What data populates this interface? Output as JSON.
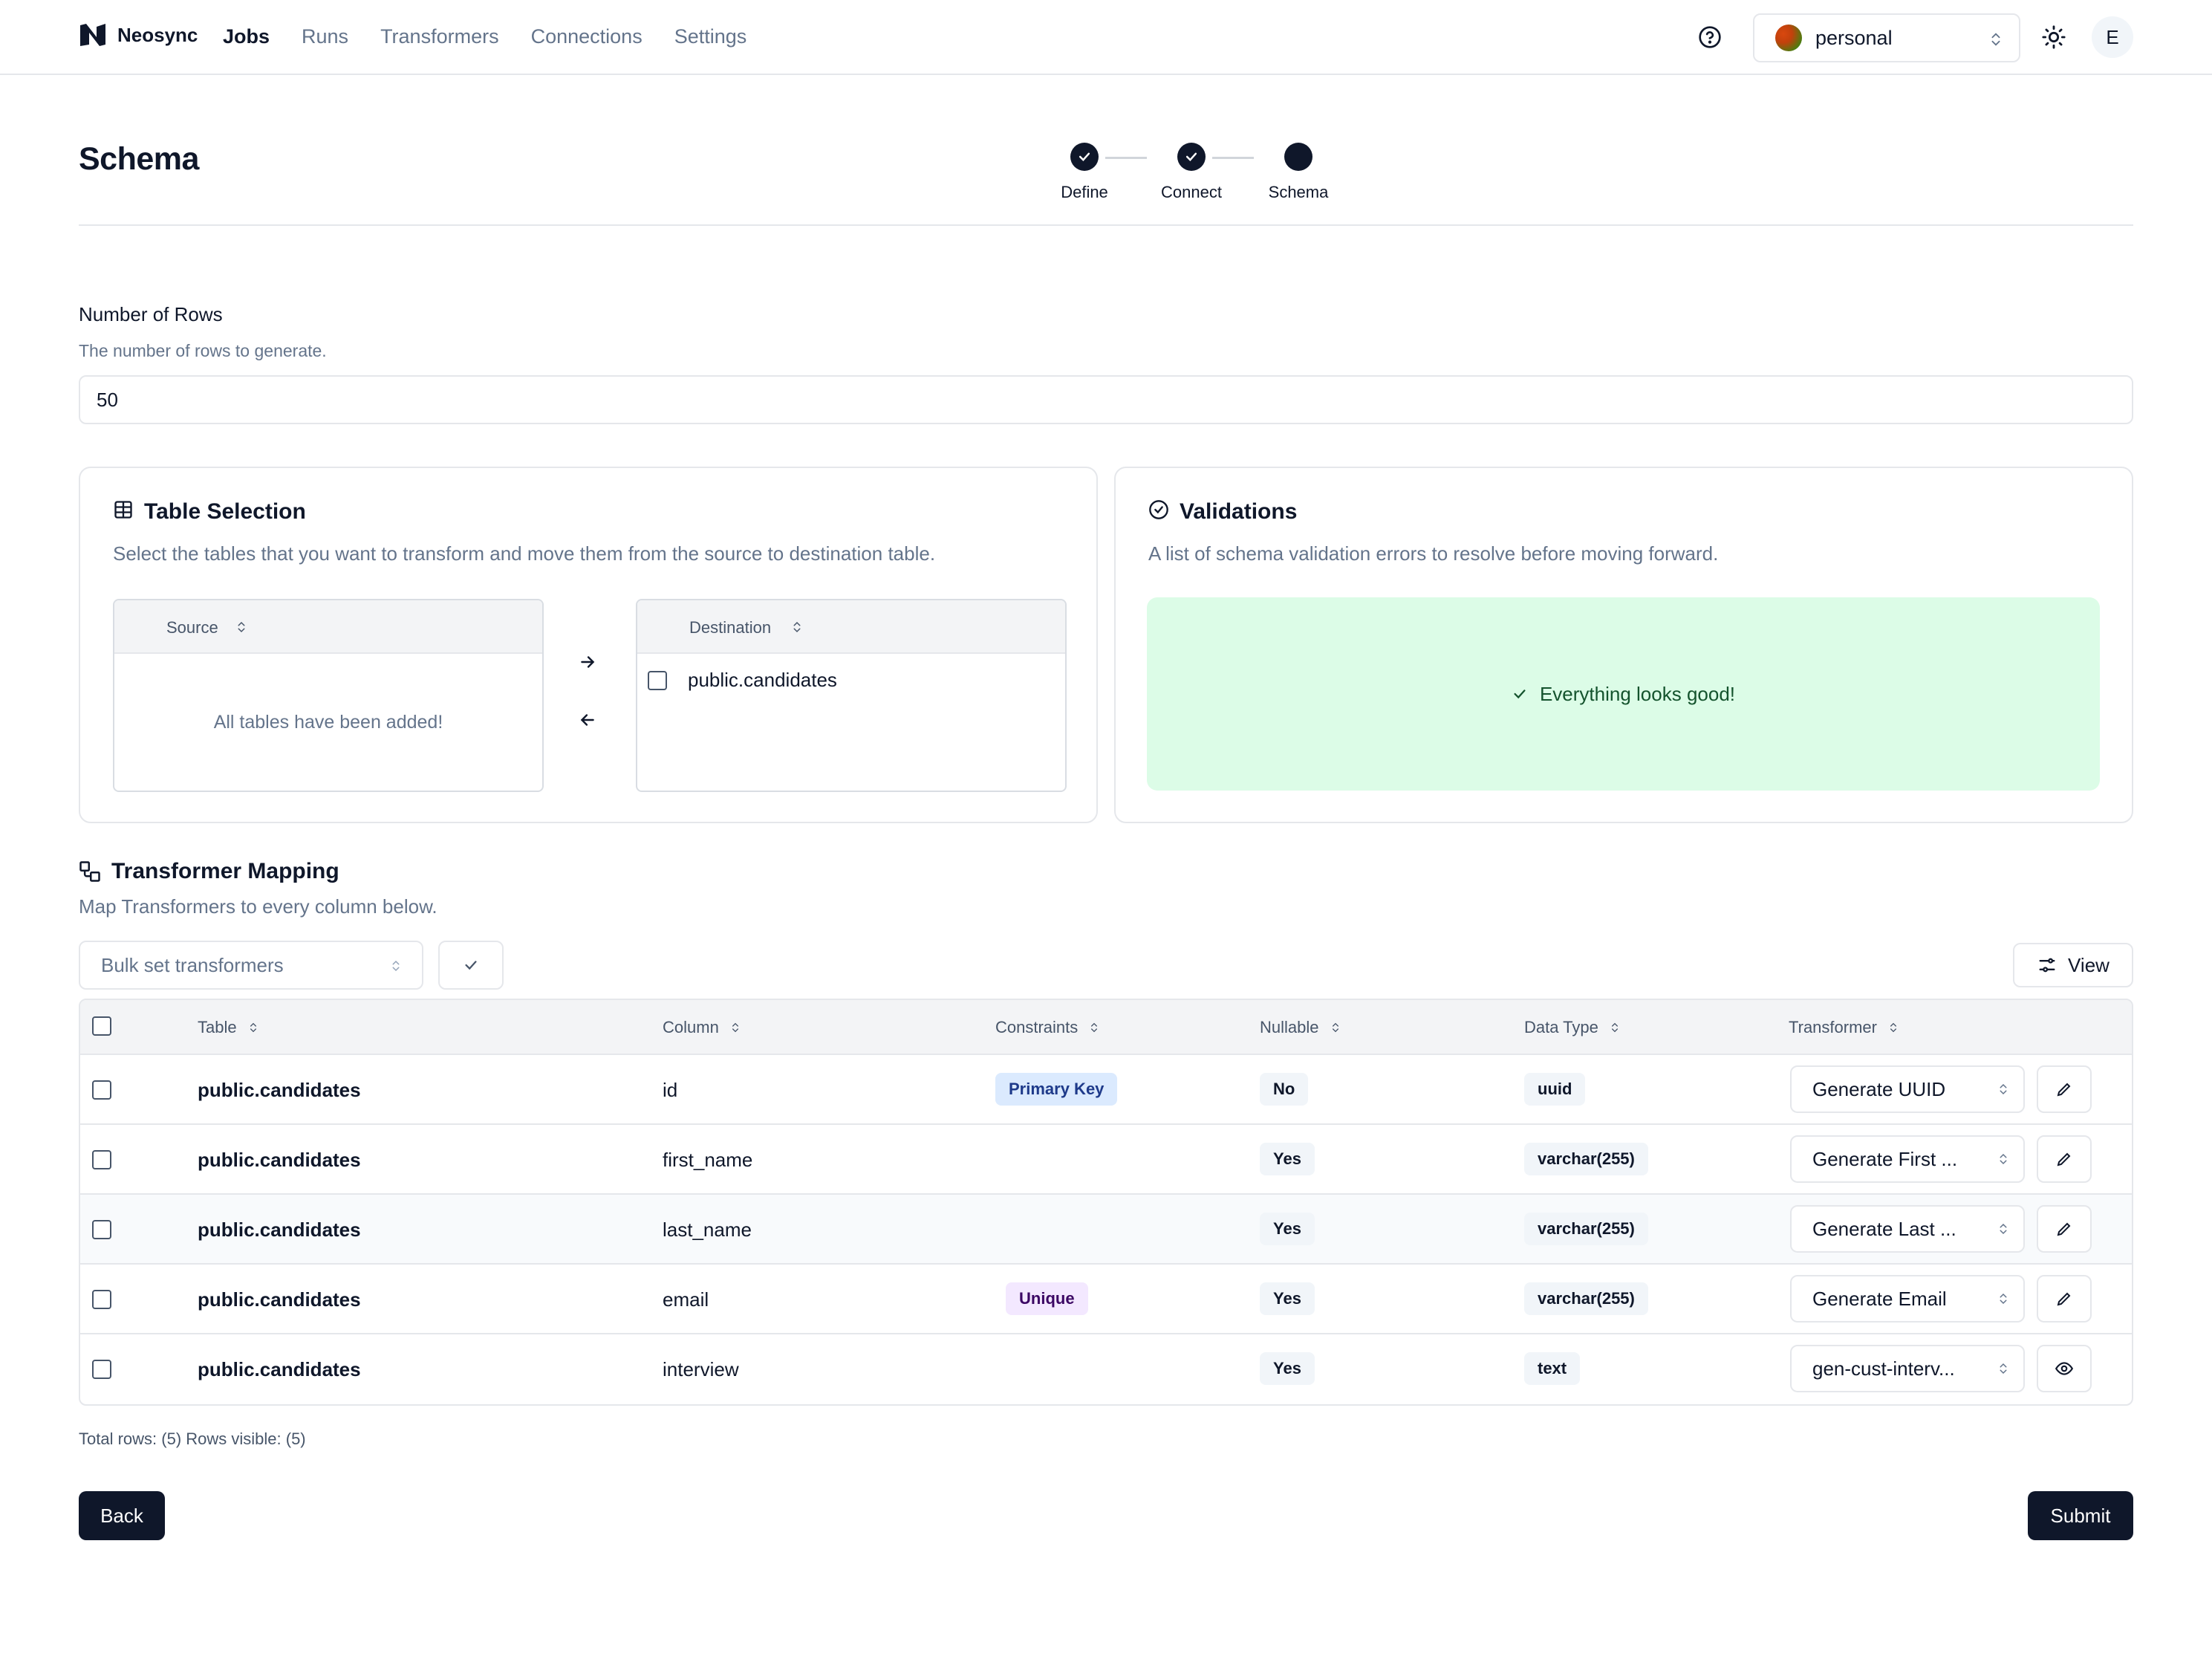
{
  "header": {
    "brand": "Neosync",
    "nav": [
      {
        "label": "Jobs",
        "active": true
      },
      {
        "label": "Runs",
        "active": false
      },
      {
        "label": "Transformers",
        "active": false
      },
      {
        "label": "Connections",
        "active": false
      },
      {
        "label": "Settings",
        "active": false
      }
    ],
    "workspace": "personal",
    "avatar_initial": "E"
  },
  "page": {
    "title": "Schema",
    "steps": [
      {
        "label": "Define",
        "state": "complete"
      },
      {
        "label": "Connect",
        "state": "complete"
      },
      {
        "label": "Schema",
        "state": "current"
      }
    ]
  },
  "rows_field": {
    "label": "Number of Rows",
    "description": "The number of rows to generate.",
    "value": "50"
  },
  "table_selection": {
    "title": "Table Selection",
    "description": "Select the tables that you want to transform and move them from the source to destination table.",
    "source_header": "Source",
    "source_empty": "All tables have been added!",
    "destination_header": "Destination",
    "destination_items": [
      "public.candidates"
    ]
  },
  "validations": {
    "title": "Validations",
    "description": "A list of schema validation errors to resolve before moving forward.",
    "status": "Everything looks good!"
  },
  "mapping": {
    "title": "Transformer Mapping",
    "description": "Map Transformers to every column below.",
    "bulk_placeholder": "Bulk set transformers",
    "view_label": "View",
    "columns": [
      "Table",
      "Column",
      "Constraints",
      "Nullable",
      "Data Type",
      "Transformer"
    ],
    "rows": [
      {
        "table": "public.candidates",
        "column": "id",
        "constraint": "Primary Key",
        "nullable": "No",
        "data_type": "uuid",
        "transformer": "Generate UUID",
        "action": "edit"
      },
      {
        "table": "public.candidates",
        "column": "first_name",
        "constraint": "",
        "nullable": "Yes",
        "data_type": "varchar(255)",
        "transformer": "Generate First ...",
        "action": "edit"
      },
      {
        "table": "public.candidates",
        "column": "last_name",
        "constraint": "",
        "nullable": "Yes",
        "data_type": "varchar(255)",
        "transformer": "Generate Last ...",
        "action": "edit"
      },
      {
        "table": "public.candidates",
        "column": "email",
        "constraint": "Unique",
        "nullable": "Yes",
        "data_type": "varchar(255)",
        "transformer": "Generate Email",
        "action": "edit"
      },
      {
        "table": "public.candidates",
        "column": "interview",
        "constraint": "",
        "nullable": "Yes",
        "data_type": "text",
        "transformer": "gen-cust-interv...",
        "action": "view"
      }
    ],
    "totals": "Total rows: (5) Rows visible: (5)"
  },
  "footer": {
    "back": "Back",
    "submit": "Submit"
  },
  "colors": {
    "primary": "#0f172a",
    "success_bg": "#dcfce7",
    "pk_badge": "#dbeafe",
    "unique_badge": "#f3e8ff"
  }
}
